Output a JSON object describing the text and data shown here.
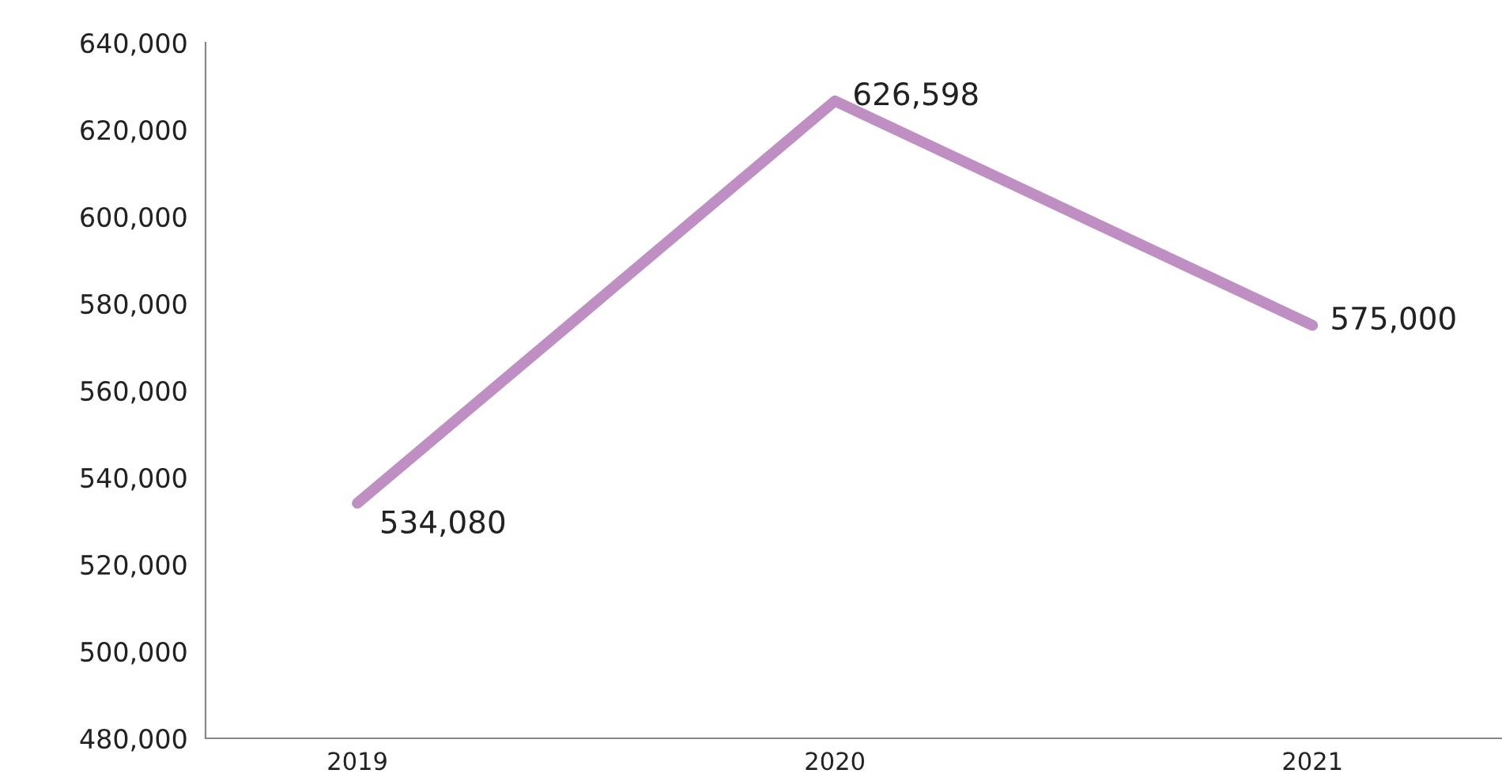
{
  "chart_data": {
    "type": "line",
    "categories": [
      "2019",
      "2020",
      "2021"
    ],
    "series": [
      {
        "color": "#bf8fc4",
        "values": [
          534080,
          626598,
          575000
        ],
        "value_labels": [
          "534,080",
          "626,598",
          "575,000"
        ]
      }
    ],
    "ylim": [
      480000,
      640000
    ],
    "yticks": [
      {
        "value": 480000,
        "label": "480,000"
      },
      {
        "value": 500000,
        "label": "500,000"
      },
      {
        "value": 520000,
        "label": "520,000"
      },
      {
        "value": 540000,
        "label": "540,000"
      },
      {
        "value": 560000,
        "label": "560,000"
      },
      {
        "value": 580000,
        "label": "580,000"
      },
      {
        "value": 600000,
        "label": "600,000"
      },
      {
        "value": 620000,
        "label": "620,000"
      },
      {
        "value": 640000,
        "label": "640,000"
      }
    ],
    "grid": false,
    "legend": false,
    "marker": "none",
    "line_style": "solid"
  }
}
